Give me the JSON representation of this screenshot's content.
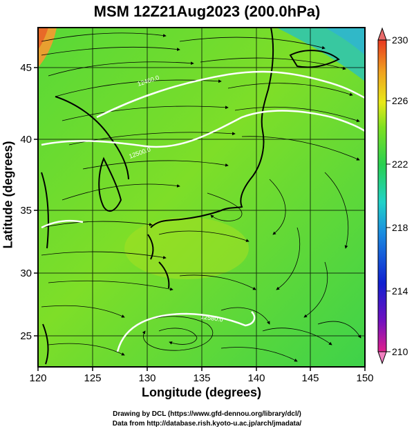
{
  "title": "MSM 12Z21Aug2023 (200.0hPa)",
  "map": {
    "x_axis_label": "Longitude (degrees)",
    "y_axis_label": "Latitude  (degrees)",
    "lon_range": [
      120,
      150
    ],
    "lat_range": [
      22.7,
      48
    ],
    "lon_ticks": [
      "120",
      "125",
      "130",
      "135",
      "140",
      "145",
      "150"
    ],
    "lat_ticks": [
      "25",
      "30",
      "35",
      "40",
      "45"
    ],
    "grid": true,
    "field": "temperature shading with wind streamlines"
  },
  "colorbar": {
    "ticks": [
      "230",
      "226",
      "222",
      "218",
      "214",
      "210"
    ],
    "range": [
      210,
      230
    ],
    "colors": [
      "#e0208c",
      "#7010c0",
      "#1020d0",
      "#1a8ce0",
      "#20d2c8",
      "#28d050",
      "#7ee020",
      "#e8e818",
      "#f0a020",
      "#e83820"
    ]
  },
  "contours": [
    {
      "label": "12460.0"
    },
    {
      "label": "12500.0"
    },
    {
      "label": "12580.0"
    }
  ],
  "credits": {
    "line1": "Drawing by DCL (https://www.gfd-dennou.org/library/dcl/)",
    "line2": "Data from http://database.rish.kyoto-u.ac.jp/arch/jmadata/"
  }
}
